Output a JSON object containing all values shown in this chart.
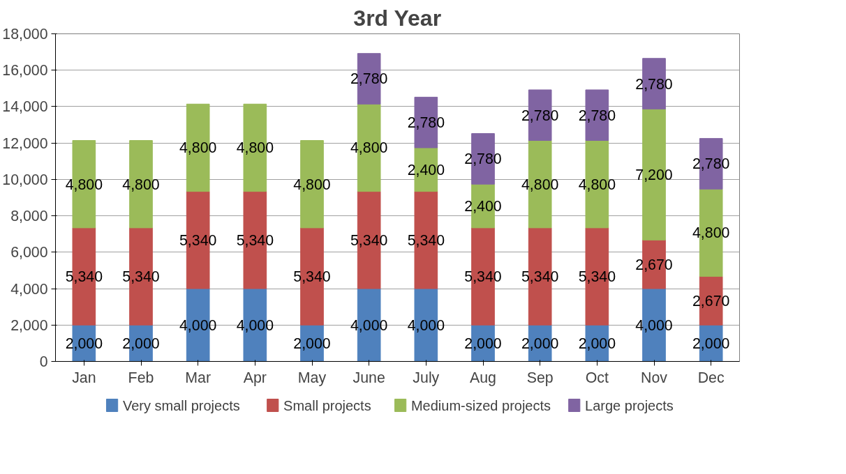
{
  "chart_data": {
    "type": "bar",
    "title": "3rd Year",
    "stacked": true,
    "grid": "y",
    "legend": "bottom",
    "categories": [
      "Jan",
      "Feb",
      "Mar",
      "Apr",
      "May",
      "June",
      "July",
      "Aug",
      "Sep",
      "Oct",
      "Nov",
      "Dec"
    ],
    "ylim": [
      0,
      18000
    ],
    "yticks": [
      0,
      {
        "value": 2000,
        "label": "2,000"
      },
      {
        "value": 4000,
        "label": "4,000"
      },
      {
        "value": 6000,
        "label": "6,000"
      },
      {
        "value": 8000,
        "label": "8,000"
      },
      {
        "value": 10000,
        "label": "10,000"
      },
      {
        "value": 12000,
        "label": "12,000"
      },
      {
        "value": 14000,
        "label": "14,000"
      },
      {
        "value": 16000,
        "label": "16,000"
      },
      {
        "value": 18000,
        "label": "18,000"
      }
    ],
    "series": [
      {
        "name": "Very small projects",
        "color": "#4f81bd",
        "values": [
          2000,
          2000,
          4000,
          4000,
          2000,
          4000,
          4000,
          2000,
          2000,
          2000,
          4000,
          2000
        ],
        "value_labels": [
          "2,000",
          "2,000",
          "4,000",
          "4,000",
          "2,000",
          "4,000",
          "4,000",
          "2,000",
          "2,000",
          "2,000",
          "4,000",
          "2,000"
        ]
      },
      {
        "name": "Small projects",
        "color": "#c0504d",
        "values": [
          5340,
          5340,
          5340,
          5340,
          5340,
          5340,
          5340,
          5340,
          5340,
          5340,
          2670,
          2670
        ],
        "value_labels": [
          "5,340",
          "5,340",
          "5,340",
          "5,340",
          "5,340",
          "5,340",
          "5,340",
          "5,340",
          "5,340",
          "5,340",
          "2,670",
          "2,670"
        ]
      },
      {
        "name": "Medium-sized projects",
        "color": "#9bbb59",
        "values": [
          4800,
          4800,
          4800,
          4800,
          4800,
          4800,
          2400,
          2400,
          4800,
          4800,
          7200,
          4800
        ],
        "value_labels": [
          "4,800",
          "4,800",
          "4,800",
          "4,800",
          "4,800",
          "4,800",
          "2,400",
          "2,400",
          "4,800",
          "4,800",
          "7,200",
          "4,800"
        ]
      },
      {
        "name": "Large projects",
        "color": "#8064a2",
        "values": [
          null,
          null,
          null,
          null,
          null,
          2780,
          2780,
          2780,
          2780,
          2780,
          2780,
          2780
        ],
        "value_labels": [
          null,
          null,
          null,
          null,
          null,
          "2,780",
          "2,780",
          "2,780",
          "2,780",
          "2,780",
          "2,780",
          "2,780"
        ]
      }
    ]
  }
}
